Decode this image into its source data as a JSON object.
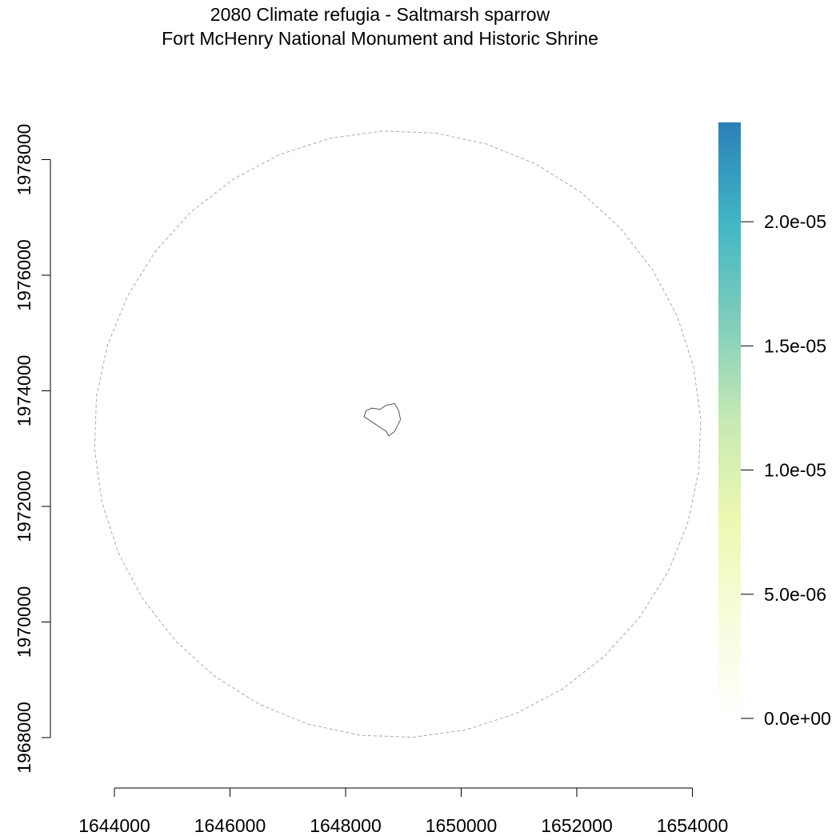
{
  "title": {
    "line1": "2080 Climate refugia - Saltmarsh sparrow",
    "line2": "Fort McHenry National Monument and Historic Shrine"
  },
  "chart_data": {
    "type": "heatmap",
    "x_axis": {
      "ticks": [
        1644000,
        1646000,
        1648000,
        1650000,
        1652000,
        1654000
      ],
      "tick_labels": [
        "1644000",
        "1646000",
        "1648000",
        "1650000",
        "1652000",
        "1654000"
      ]
    },
    "y_axis": {
      "ticks": [
        1968000,
        1970000,
        1972000,
        1974000,
        1976000,
        1978000
      ],
      "tick_labels": [
        "1968000",
        "1970000",
        "1972000",
        "1974000",
        "1976000",
        "1978000"
      ]
    },
    "legend": {
      "placement": "right",
      "range": [
        0,
        2.4e-05
      ],
      "ticks": [
        0,
        5e-06,
        1e-05,
        1.5e-05,
        2e-05
      ],
      "tick_labels": [
        "0.0e+00",
        "5.0e-06",
        "1.0e-05",
        "1.5e-05",
        "2.0e-05"
      ],
      "colors": [
        "#ffffff",
        "#f8fcdc",
        "#edf8b1",
        "#c7e9b4",
        "#7fcdbb",
        "#41b6c4",
        "#2c7fb8"
      ]
    },
    "features": [
      {
        "name": "buffer-boundary",
        "style": "dashed",
        "color": "#aaaaaa",
        "center": [
          1648900,
          1973250
        ],
        "radius": 5250
      },
      {
        "name": "park-boundary",
        "style": "solid",
        "color": "#555555",
        "coords": [
          [
            1648350,
            1973650
          ],
          [
            1648450,
            1973700
          ],
          [
            1648600,
            1973680
          ],
          [
            1648700,
            1973750
          ],
          [
            1648850,
            1973780
          ],
          [
            1648920,
            1973650
          ],
          [
            1648950,
            1973500
          ],
          [
            1648850,
            1973300
          ],
          [
            1648750,
            1973220
          ],
          [
            1648700,
            1973300
          ],
          [
            1648550,
            1973400
          ],
          [
            1648400,
            1973500
          ],
          [
            1648320,
            1973550
          ],
          [
            1648350,
            1973650
          ]
        ]
      }
    ]
  }
}
